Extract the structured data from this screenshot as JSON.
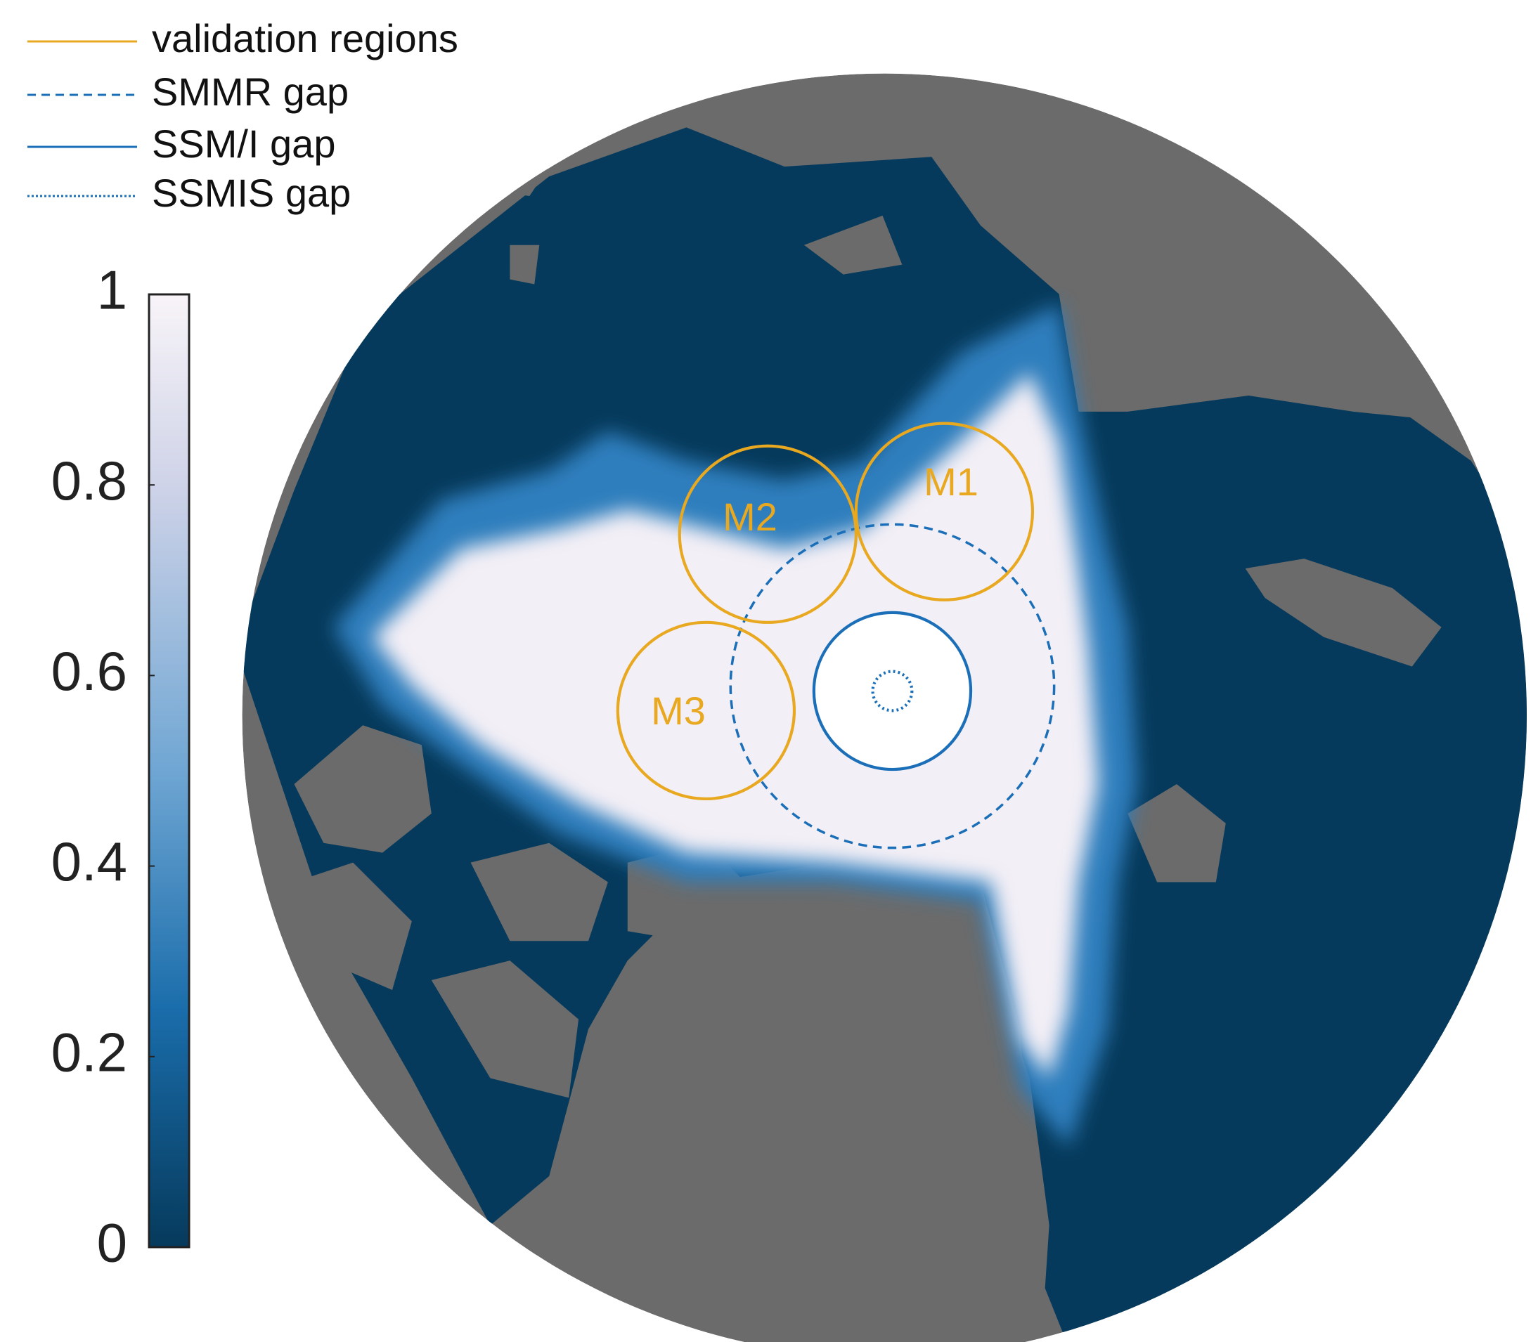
{
  "legend": [
    {
      "label": "validation regions"
    },
    {
      "label": "SMMR gap"
    },
    {
      "label": "SSM/I gap"
    },
    {
      "label": "SSMIS gap"
    }
  ],
  "colorbar": {
    "lim": [
      0,
      1
    ],
    "ticks": [
      0,
      0.2,
      0.4,
      0.6,
      0.8,
      1
    ]
  },
  "regions": [
    {
      "label": "M1"
    },
    {
      "label": "M2"
    },
    {
      "label": "M3"
    }
  ]
}
